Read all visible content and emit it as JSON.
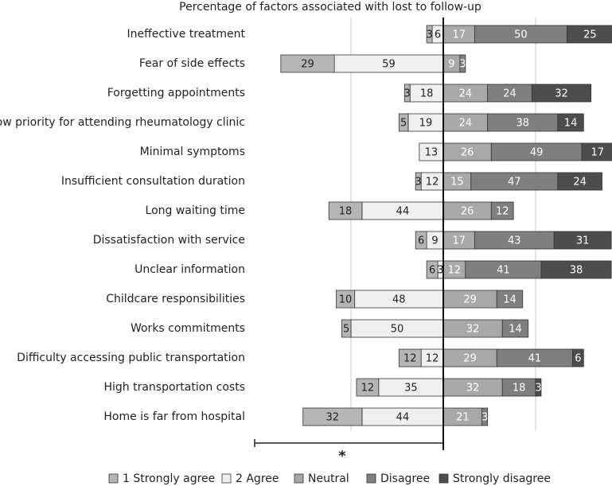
{
  "chart_data": {
    "type": "diverging_bar",
    "title": "Percentage of factors associated with lost to follow-up",
    "categories": [
      "Ineffective treatment",
      "Fear of side effects",
      "Forgetting appointments",
      "Low priority for attending rheumatology clinic",
      "Minimal symptoms",
      "Insufficient consultation duration",
      "Long waiting time",
      "Dissatisfaction with service",
      "Unclear information",
      "Childcare responsibilities",
      "Works commitments",
      "Difficulty accessing public transportation",
      "High transportation costs",
      "Home is far from hospital"
    ],
    "series": [
      {
        "name": "1 Strongly agree",
        "color": "#b5b5b5",
        "values": [
          3,
          29,
          3,
          5,
          null,
          3,
          18,
          6,
          6,
          10,
          5,
          12,
          12,
          32
        ]
      },
      {
        "name": "2 Agree",
        "color": "#efefef",
        "values": [
          6,
          59,
          18,
          19,
          13,
          12,
          44,
          9,
          3,
          48,
          50,
          12,
          35,
          44
        ]
      },
      {
        "name": "Neutral",
        "color": "#a8a8a8",
        "values": [
          17,
          9,
          24,
          24,
          26,
          15,
          26,
          17,
          12,
          29,
          32,
          29,
          32,
          21
        ]
      },
      {
        "name": "Disagree",
        "color": "#7f7f7f",
        "values": [
          50,
          3,
          24,
          38,
          49,
          47,
          12,
          43,
          41,
          14,
          14,
          41,
          18,
          3
        ]
      },
      {
        "name": "Strongly disagree",
        "color": "#4d4d4d",
        "values": [
          25,
          null,
          32,
          14,
          17,
          24,
          null,
          31,
          38,
          null,
          null,
          6,
          3,
          null
        ]
      }
    ],
    "grid_lines": [
      -50,
      50
    ],
    "annotation": "*"
  }
}
